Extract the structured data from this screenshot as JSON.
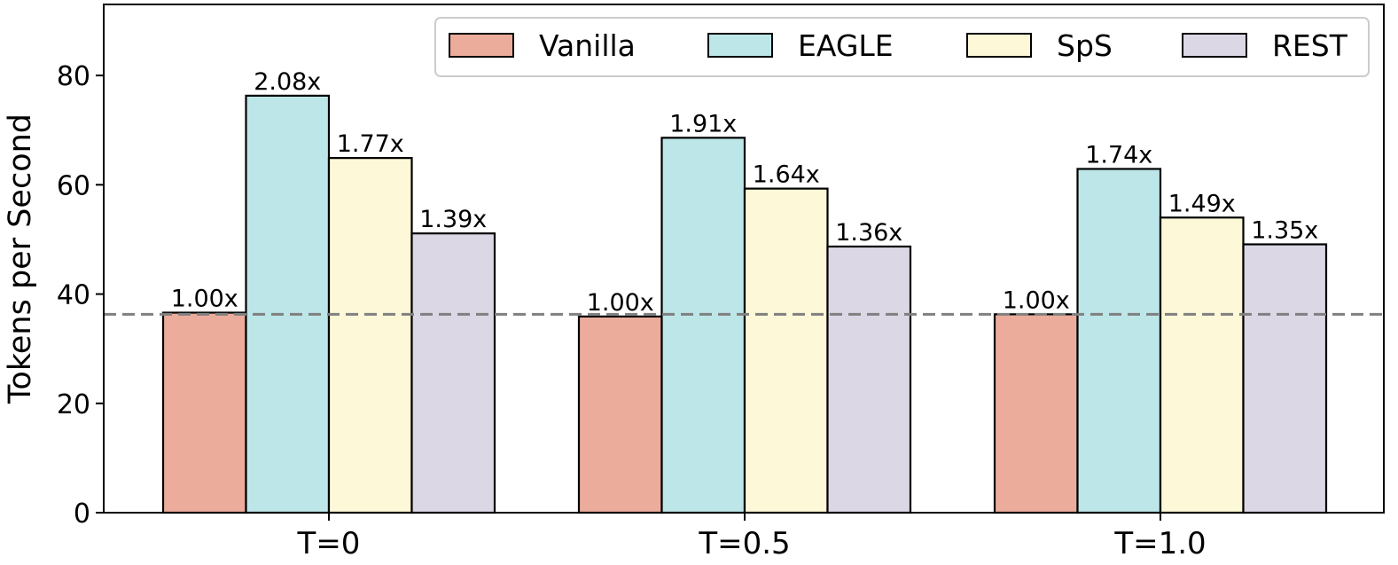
{
  "chart_data": {
    "type": "bar",
    "title": "",
    "xlabel": "",
    "ylabel": "Tokens per Second",
    "categories": [
      "T=0",
      "T=0.5",
      "T=1.0"
    ],
    "ylim": [
      0,
      93
    ],
    "yticks": [
      0,
      20,
      40,
      60,
      80
    ],
    "grid": false,
    "legend_position": "top-right",
    "reference_line": {
      "value": 36.3,
      "style": "dashed",
      "color": "#808080"
    },
    "series": [
      {
        "name": "Vanilla",
        "color": "#EBAC9C",
        "values": [
          36.6,
          35.9,
          36.3
        ],
        "labels": [
          "1.00x",
          "1.00x",
          "1.00x"
        ]
      },
      {
        "name": "EAGLE",
        "color": "#BDE6E8",
        "values": [
          76.3,
          68.6,
          62.9
        ],
        "labels": [
          "2.08x",
          "1.91x",
          "1.74x"
        ]
      },
      {
        "name": "SpS",
        "color": "#FCF8D8",
        "values": [
          64.9,
          59.3,
          54.0
        ],
        "labels": [
          "1.77x",
          "1.64x",
          "1.49x"
        ]
      },
      {
        "name": "REST",
        "color": "#DCD7E5",
        "values": [
          51.1,
          48.7,
          49.1
        ],
        "labels": [
          "1.39x",
          "1.36x",
          "1.35x"
        ]
      }
    ]
  }
}
